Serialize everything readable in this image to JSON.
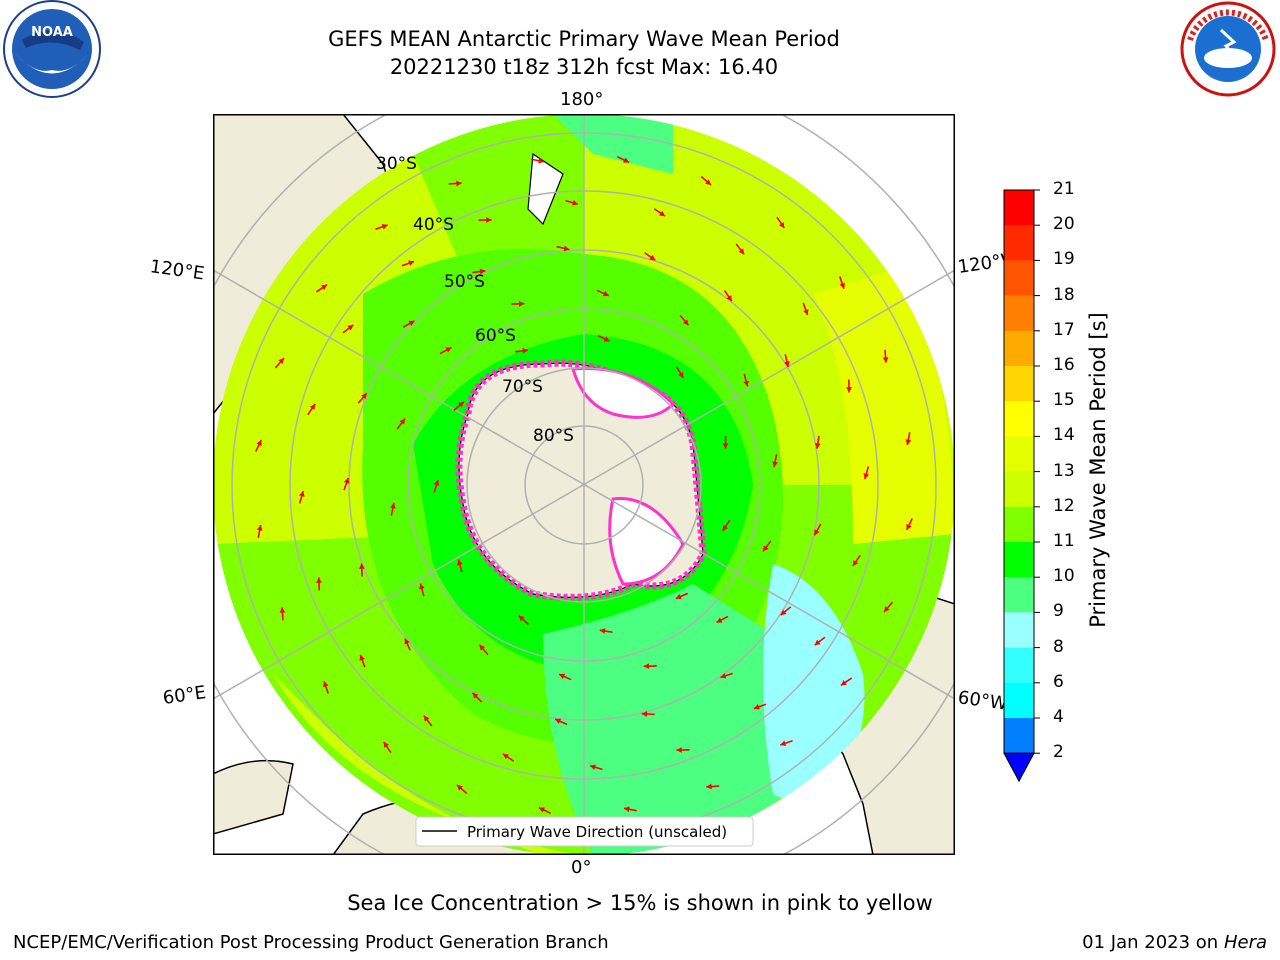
{
  "title_line1": "GEFS MEAN Antarctic Primary Wave Mean Period",
  "title_line2": "20221230 t18z 312h fcst   Max: 16.40",
  "meridian_labels": {
    "top": "180°",
    "bottom": "0°",
    "upper_left": "120°E",
    "upper_right": "120°W",
    "lower_left": "60°E",
    "lower_right": "60°W"
  },
  "parallel_labels": [
    "30°S",
    "40°S",
    "50°S",
    "60°S",
    "70°S",
    "80°S"
  ],
  "legend_label": "Primary Wave Direction (unscaled)",
  "colorbar": {
    "label": "Primary Wave Mean Period [s]",
    "ticks": [
      "21",
      "20",
      "19",
      "18",
      "17",
      "16",
      "15",
      "14",
      "13",
      "12",
      "11",
      "10",
      "9",
      "8",
      "6",
      "4",
      "2"
    ],
    "colors": [
      "#ff0000",
      "#ff2a00",
      "#ff5500",
      "#ff8000",
      "#ffaa00",
      "#ffd500",
      "#ffff00",
      "#e6ff00",
      "#ccff00",
      "#80ff00",
      "#00ff00",
      "#4dff80",
      "#99ffff",
      "#33ffff",
      "#00ffff",
      "#0080ff",
      "#0000ff"
    ]
  },
  "caption": "Sea Ice Concentration > 15% is shown in pink to yellow",
  "footer_left": "NCEP/EMC/Verification Post Processing Product Generation Branch",
  "footer_right_date": "01 Jan 2023 on ",
  "footer_right_machine": "Hera",
  "logos": {
    "noaa": "NOAA",
    "nws": "NATIONAL WEATHER SERVICE"
  }
}
